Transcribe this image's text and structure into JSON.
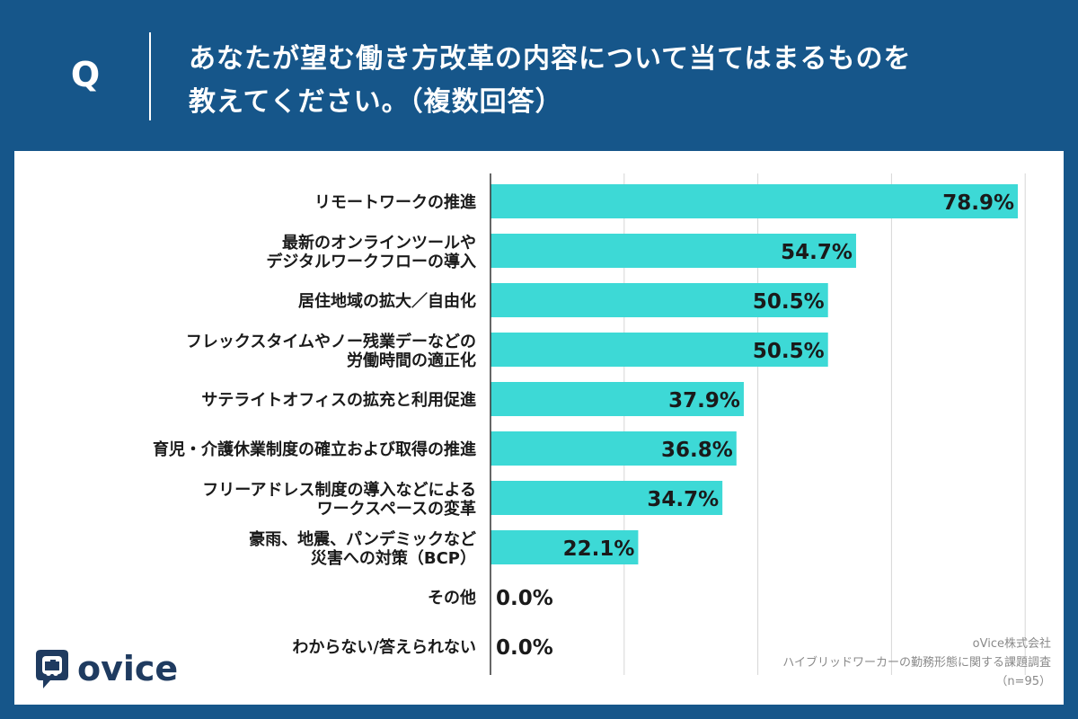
{
  "header": {
    "q_label": "Q",
    "question": "あなたが望む働き方改革の内容について当てはまるものを\n教えてください。（複数回答）"
  },
  "chart_data": {
    "type": "bar",
    "orientation": "horizontal",
    "title": "",
    "xlabel": "",
    "ylabel": "",
    "xlim": [
      0,
      80
    ],
    "grid": true,
    "bar_color": "#3dd9d6",
    "categories": [
      "リモートワークの推進",
      "最新のオンラインツールや\nデジタルワークフローの導入",
      "居住地域の拡大／自由化",
      "フレックスタイムやノー残業デーなどの\n労働時間の適正化",
      "サテライトオフィスの拡充と利用促進",
      "育児・介護休業制度の確立および取得の推進",
      "フリーアドレス制度の導入などによる\nワークスペースの変革",
      "豪雨、地震、パンデミックなど\n災害への対策（BCP）",
      "その他",
      "わからない/答えられない"
    ],
    "values": [
      78.9,
      54.7,
      50.5,
      50.5,
      37.9,
      36.8,
      34.7,
      22.1,
      0.0,
      0.0
    ],
    "value_labels": [
      "78.9%",
      "54.7%",
      "50.5%",
      "50.5%",
      "37.9%",
      "36.8%",
      "34.7%",
      "22.1%",
      "0.0%",
      "0.0%"
    ]
  },
  "logo": {
    "text": "ovice",
    "icon": "ovice-logo-icon"
  },
  "source": {
    "company": "oVice株式会社",
    "survey": "ハイブリッドワーカーの勤務形態に関する課題調査",
    "sample": "（n=95）"
  }
}
